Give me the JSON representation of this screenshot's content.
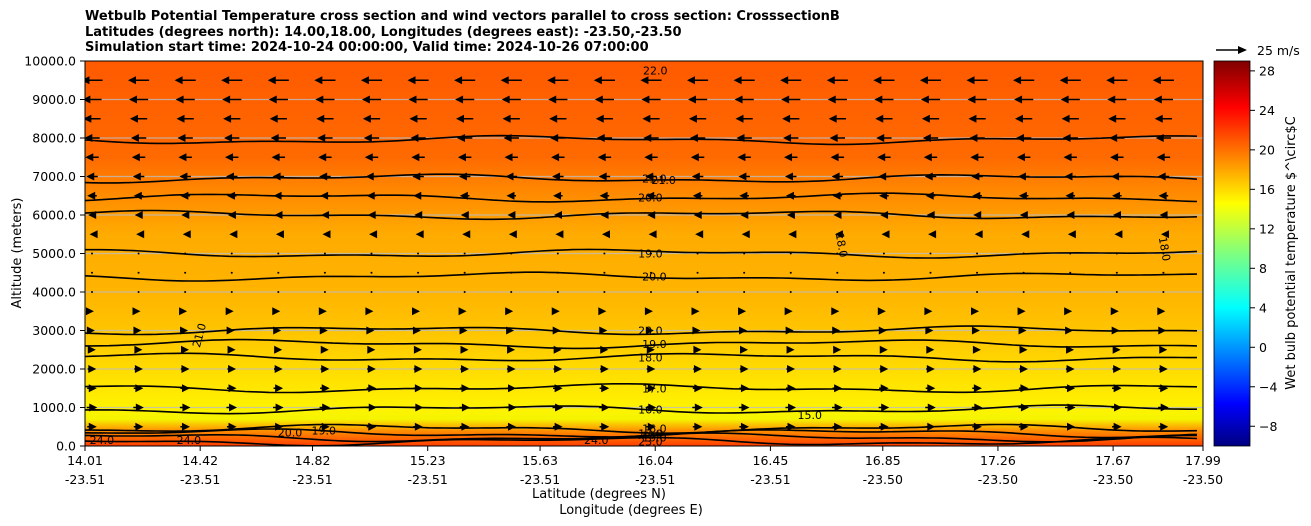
{
  "chart_data": {
    "type": "heatmap",
    "title_lines": [
      "Wetbulb Potential Temperature cross section and wind vectors parallel to cross section: CrosssectionB",
      "Latitudes (degrees north): 14.00,18.00, Longitudes (degrees east): -23.50,-23.50",
      "Simulation start time: 2024-10-24 00:00:00, Valid time: 2024-10-26 07:00:00"
    ],
    "ylabel": "Altitude (meters)",
    "xlabel": "Latitude (degrees N)",
    "xlabel2": "Longitude (degrees E)",
    "ylim": [
      0,
      10000
    ],
    "y_ticks": [
      "0.0",
      "1000.0",
      "2000.0",
      "3000.0",
      "4000.0",
      "5000.0",
      "6000.0",
      "7000.0",
      "8000.0",
      "9000.0",
      "10000.0"
    ],
    "x_ticks": [
      {
        "lat": "14.01",
        "lon": "-23.51"
      },
      {
        "lat": "14.42",
        "lon": "-23.51"
      },
      {
        "lat": "14.82",
        "lon": "-23.51"
      },
      {
        "lat": "15.23",
        "lon": "-23.51"
      },
      {
        "lat": "15.63",
        "lon": "-23.51"
      },
      {
        "lat": "16.04",
        "lon": "-23.51"
      },
      {
        "lat": "16.45",
        "lon": "-23.51"
      },
      {
        "lat": "16.85",
        "lon": "-23.50"
      },
      {
        "lat": "17.26",
        "lon": "-23.50"
      },
      {
        "lat": "17.67",
        "lon": "-23.50"
      },
      {
        "lat": "17.99",
        "lon": "-23.50"
      }
    ],
    "xlim": [
      14.01,
      17.99
    ],
    "grid": true,
    "colorbar": {
      "label": "Wet bulb potential temperature $^\\circ$C",
      "colormap": "jet",
      "vmin": -10,
      "vmax": 29,
      "ticks": [
        "−8",
        "−4",
        "0",
        "4",
        "8",
        "12",
        "16",
        "20",
        "24",
        "28"
      ]
    },
    "quiver_key": {
      "label": "25 m/s",
      "speed": 25
    },
    "wind_rows": [
      {
        "alt": 9500,
        "speed": 22,
        "dir": "left"
      },
      {
        "alt": 9000,
        "speed": 20,
        "dir": "left"
      },
      {
        "alt": 8500,
        "speed": 18,
        "dir": "left"
      },
      {
        "alt": 8000,
        "speed": 16,
        "dir": "left"
      },
      {
        "alt": 7500,
        "speed": 14,
        "dir": "left"
      },
      {
        "alt": 7000,
        "speed": 12,
        "dir": "left"
      },
      {
        "alt": 6500,
        "speed": 10,
        "dir": "left"
      },
      {
        "alt": 6000,
        "speed": 8,
        "dir": "left"
      },
      {
        "alt": 5500,
        "speed": 5,
        "dir": "left"
      },
      {
        "alt": 5000,
        "speed": 2,
        "dir": "left"
      },
      {
        "alt": 4500,
        "speed": 1,
        "dir": "right"
      },
      {
        "alt": 4000,
        "speed": 2,
        "dir": "right"
      },
      {
        "alt": 3500,
        "speed": 4,
        "dir": "right"
      },
      {
        "alt": 3000,
        "speed": 6,
        "dir": "right"
      },
      {
        "alt": 2500,
        "speed": 8,
        "dir": "right"
      },
      {
        "alt": 2000,
        "speed": 9,
        "dir": "right"
      },
      {
        "alt": 1500,
        "speed": 10,
        "dir": "right"
      },
      {
        "alt": 1000,
        "speed": 11,
        "dir": "right"
      },
      {
        "alt": 500,
        "speed": 10,
        "dir": "right"
      }
    ],
    "contour_lines": [
      {
        "alt": 7950,
        "label": null
      },
      {
        "alt": 6950,
        "label": "21.0"
      },
      {
        "alt": 6450,
        "label": "20.0"
      },
      {
        "alt": 6000,
        "label": null
      },
      {
        "alt": 5000,
        "label": "19.0"
      },
      {
        "alt": 4400,
        "label": "20.0"
      },
      {
        "alt": 3000,
        "label": "20.0"
      },
      {
        "alt": 2650,
        "label": "19.0"
      },
      {
        "alt": 2300,
        "label": "18.0"
      },
      {
        "alt": 1500,
        "label": "17.0"
      },
      {
        "alt": 950,
        "label": "16.0"
      },
      {
        "alt": 450,
        "label": "16.0"
      },
      {
        "alt": 330,
        "label": "17.0"
      },
      {
        "alt": 220,
        "label": "19.0"
      },
      {
        "alt": 120,
        "label": "23.0"
      }
    ],
    "extra_labels": [
      {
        "text": "22.0",
        "lat": 16.04,
        "alt": 9650
      },
      {
        "text": "21.0",
        "lat": 16.07,
        "alt": 6800
      },
      {
        "text": "18.0",
        "lat": 16.69,
        "alt": 5200,
        "rotate": 80
      },
      {
        "text": "18.0",
        "lat": 17.84,
        "alt": 5100,
        "rotate": 80
      },
      {
        "text": "21.0",
        "lat": 14.43,
        "alt": 2850,
        "rotate": -75
      },
      {
        "text": "15.0",
        "lat": 16.59,
        "alt": 700
      },
      {
        "text": "24.0",
        "lat": 14.07,
        "alt": 50
      },
      {
        "text": "24.0",
        "lat": 14.38,
        "alt": 50
      },
      {
        "text": "24.0",
        "lat": 15.83,
        "alt": 50
      },
      {
        "text": "20.0",
        "lat": 14.74,
        "alt": 250
      },
      {
        "text": "19.0",
        "lat": 14.86,
        "alt": 300
      }
    ]
  }
}
